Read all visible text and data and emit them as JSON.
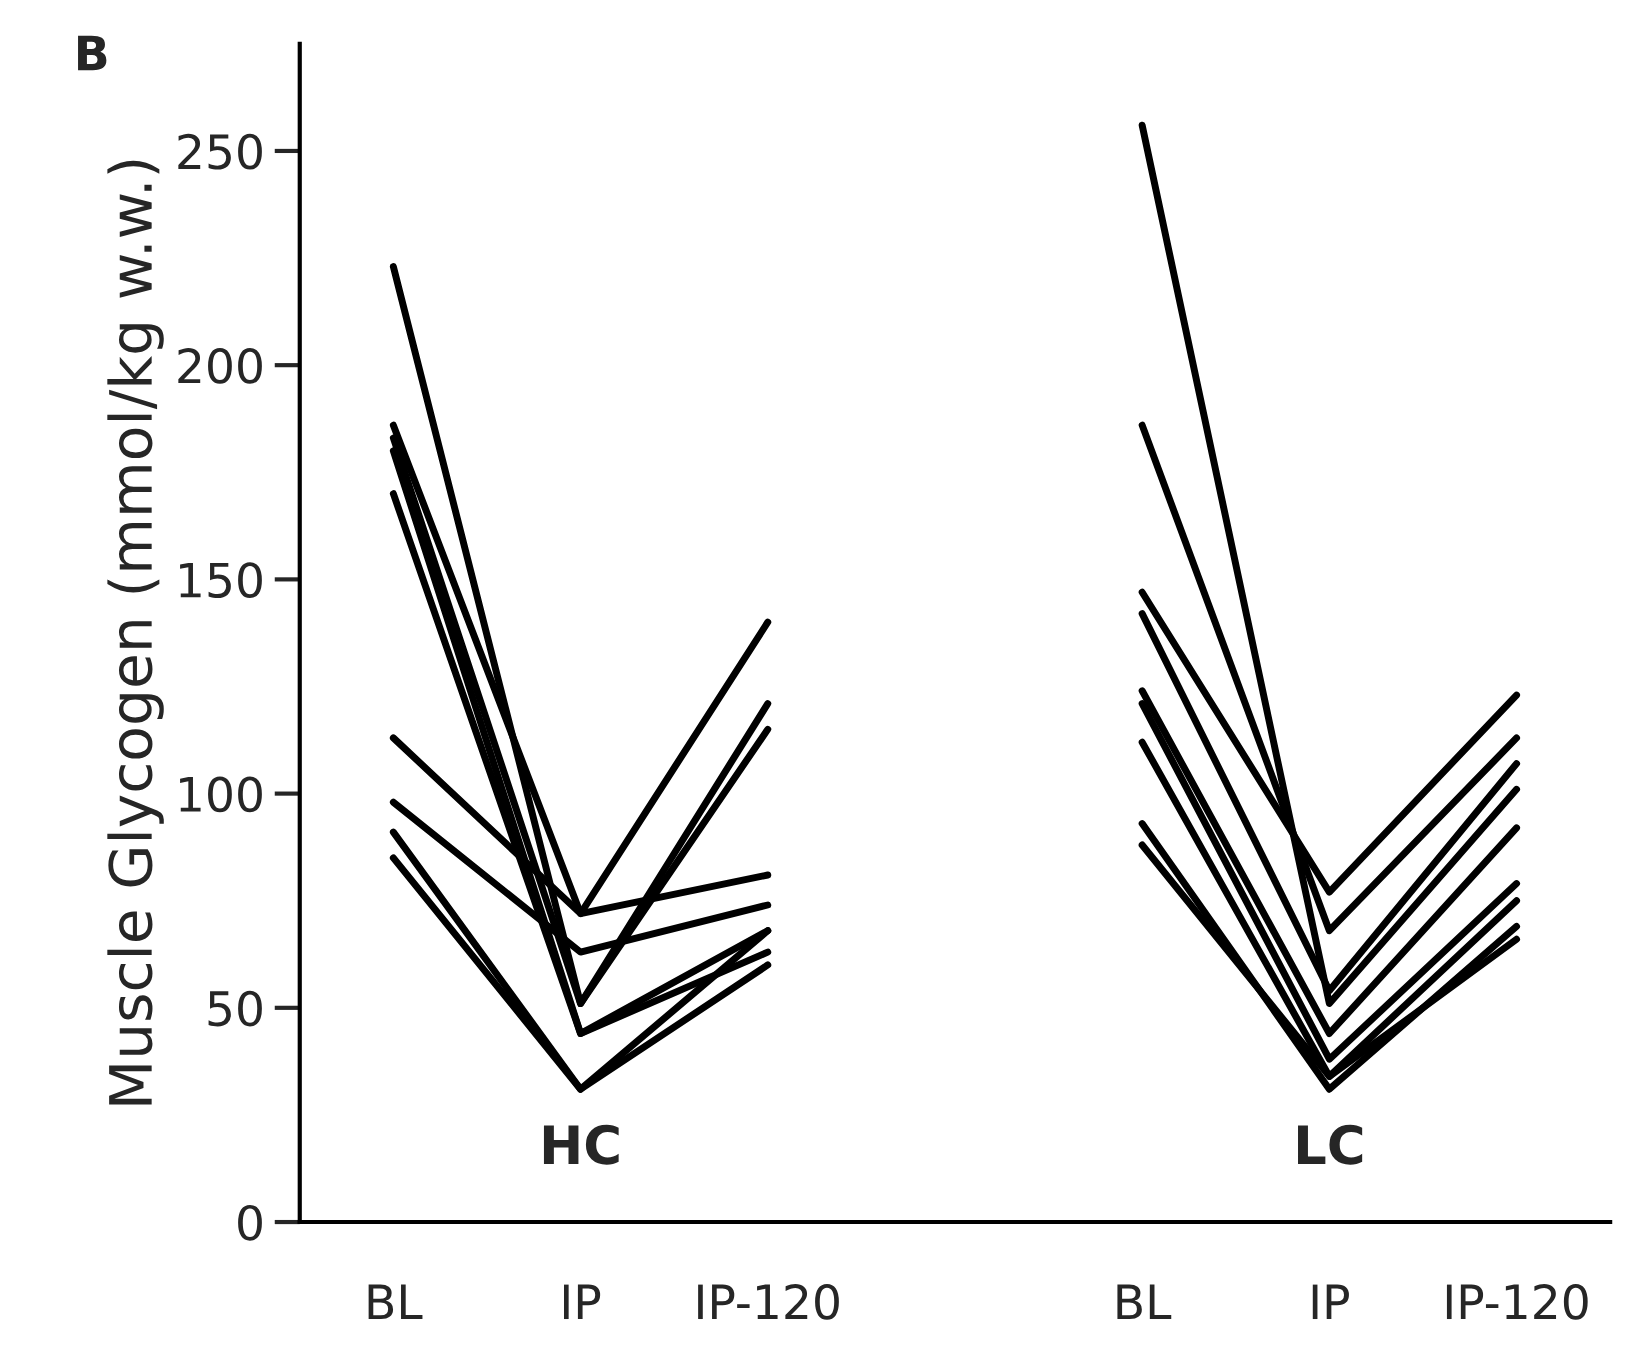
{
  "chart_data": {
    "type": "line",
    "ylabel": "Muscle Glycogen (mmol/kg w.w.)",
    "categories": [
      "BL",
      "IP",
      "IP-120",
      null,
      "BL",
      "IP",
      "IP-120"
    ],
    "series": [
      {
        "color": "#000000",
        "values": [
          223,
          51,
          121,
          null,
          null,
          null,
          null
        ]
      },
      {
        "color": "#000000",
        "values": [
          186,
          72,
          81,
          null,
          null,
          null,
          null
        ]
      },
      {
        "color": "#000000",
        "values": [
          183,
          51,
          115,
          null,
          null,
          null,
          null
        ]
      },
      {
        "color": "#000000",
        "values": [
          180,
          44,
          68,
          null,
          null,
          null,
          null
        ]
      },
      {
        "color": "#000000",
        "values": [
          170,
          44,
          63,
          null,
          null,
          null,
          null
        ]
      },
      {
        "color": "#000000",
        "values": [
          113,
          72,
          140,
          null,
          null,
          null,
          null
        ]
      },
      {
        "color": "#000000",
        "values": [
          98,
          63,
          74,
          null,
          null,
          null,
          null
        ]
      },
      {
        "color": "#000000",
        "values": [
          91,
          31,
          60,
          null,
          null,
          null,
          null
        ]
      },
      {
        "color": "#000000",
        "values": [
          85,
          31,
          68,
          null,
          null,
          null,
          null
        ]
      },
      {
        "color": "#000000",
        "values": [
          null,
          null,
          null,
          null,
          256,
          51,
          101
        ]
      },
      {
        "color": "#000000",
        "values": [
          null,
          null,
          null,
          null,
          186,
          68,
          113
        ]
      },
      {
        "color": "#000000",
        "values": [
          null,
          null,
          null,
          null,
          147,
          77,
          123
        ]
      },
      {
        "color": "#000000",
        "values": [
          null,
          null,
          null,
          null,
          142,
          54,
          107
        ]
      },
      {
        "color": "#000000",
        "values": [
          null,
          null,
          null,
          null,
          124,
          44,
          92
        ]
      },
      {
        "color": "#000000",
        "values": [
          null,
          null,
          null,
          null,
          121,
          38,
          79
        ]
      },
      {
        "color": "#000000",
        "values": [
          null,
          null,
          null,
          null,
          112,
          34,
          75
        ]
      },
      {
        "color": "#000000",
        "values": [
          null,
          null,
          null,
          null,
          93,
          31,
          69
        ]
      },
      {
        "color": "#000000",
        "values": [
          null,
          null,
          null,
          null,
          88,
          34,
          66
        ]
      }
    ],
    "ylim": [
      0,
      275
    ],
    "yticks": [
      0,
      50,
      100,
      150,
      200,
      250
    ],
    "annotations": [
      "B",
      "HC",
      "LC"
    ],
    "grid": false,
    "legend": false,
    "line_style": "solid",
    "marker": "none"
  }
}
